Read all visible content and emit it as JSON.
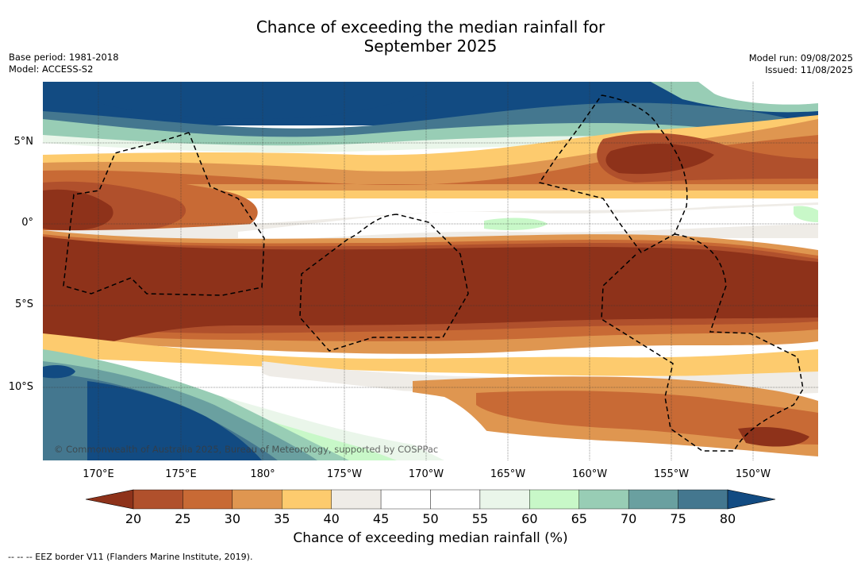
{
  "title": {
    "line1": "Chance of exceeding the median rainfall for",
    "line2": "September 2025"
  },
  "meta_left": {
    "base_period": "Base period: 1981-2018",
    "model": "Model: ACCESS-S2"
  },
  "meta_right": {
    "model_run": "Model run: 09/08/2025",
    "issued": "Issued: 11/08/2025"
  },
  "map": {
    "lat_labels": [
      "5°N",
      "0°",
      "5°S",
      "10°S"
    ],
    "lon_labels": [
      "170°E",
      "175°E",
      "180°",
      "175°W",
      "170°W",
      "165°W",
      "160°W",
      "155°W",
      "150°W"
    ],
    "copyright": "© Commonwealth of Australia 2025, Bureau of Meteorology, supported by COSPPac",
    "colors": {
      "c20": "#8e321a",
      "c25": "#b0502c",
      "c30": "#c86a35",
      "c35": "#df9650",
      "c40": "#fdcb6e",
      "c45": "#efece7",
      "c50": "#ffffff",
      "c55": "#ffffff",
      "c60": "#eaf6ea",
      "c65": "#c8f8c8",
      "c70": "#98cdb5",
      "c75": "#6aa0a0",
      "c80": "#44778f",
      "c85": "#124b82"
    }
  },
  "colorbar": {
    "ticks": [
      "20",
      "25",
      "30",
      "35",
      "40",
      "45",
      "50",
      "55",
      "60",
      "65",
      "70",
      "75",
      "80"
    ],
    "label": "Chance of exceeding median rainfall (%)",
    "colors": [
      "#8e321a",
      "#b0502c",
      "#c86a35",
      "#df9650",
      "#fdcb6e",
      "#efece7",
      "#ffffff",
      "#ffffff",
      "#eaf6ea",
      "#c8f8c8",
      "#98cdb5",
      "#6aa0a0",
      "#44778f",
      "#124b82"
    ]
  },
  "footnote": "-- -- -- EEZ border V11 (Flanders Marine Institute, 2019)."
}
